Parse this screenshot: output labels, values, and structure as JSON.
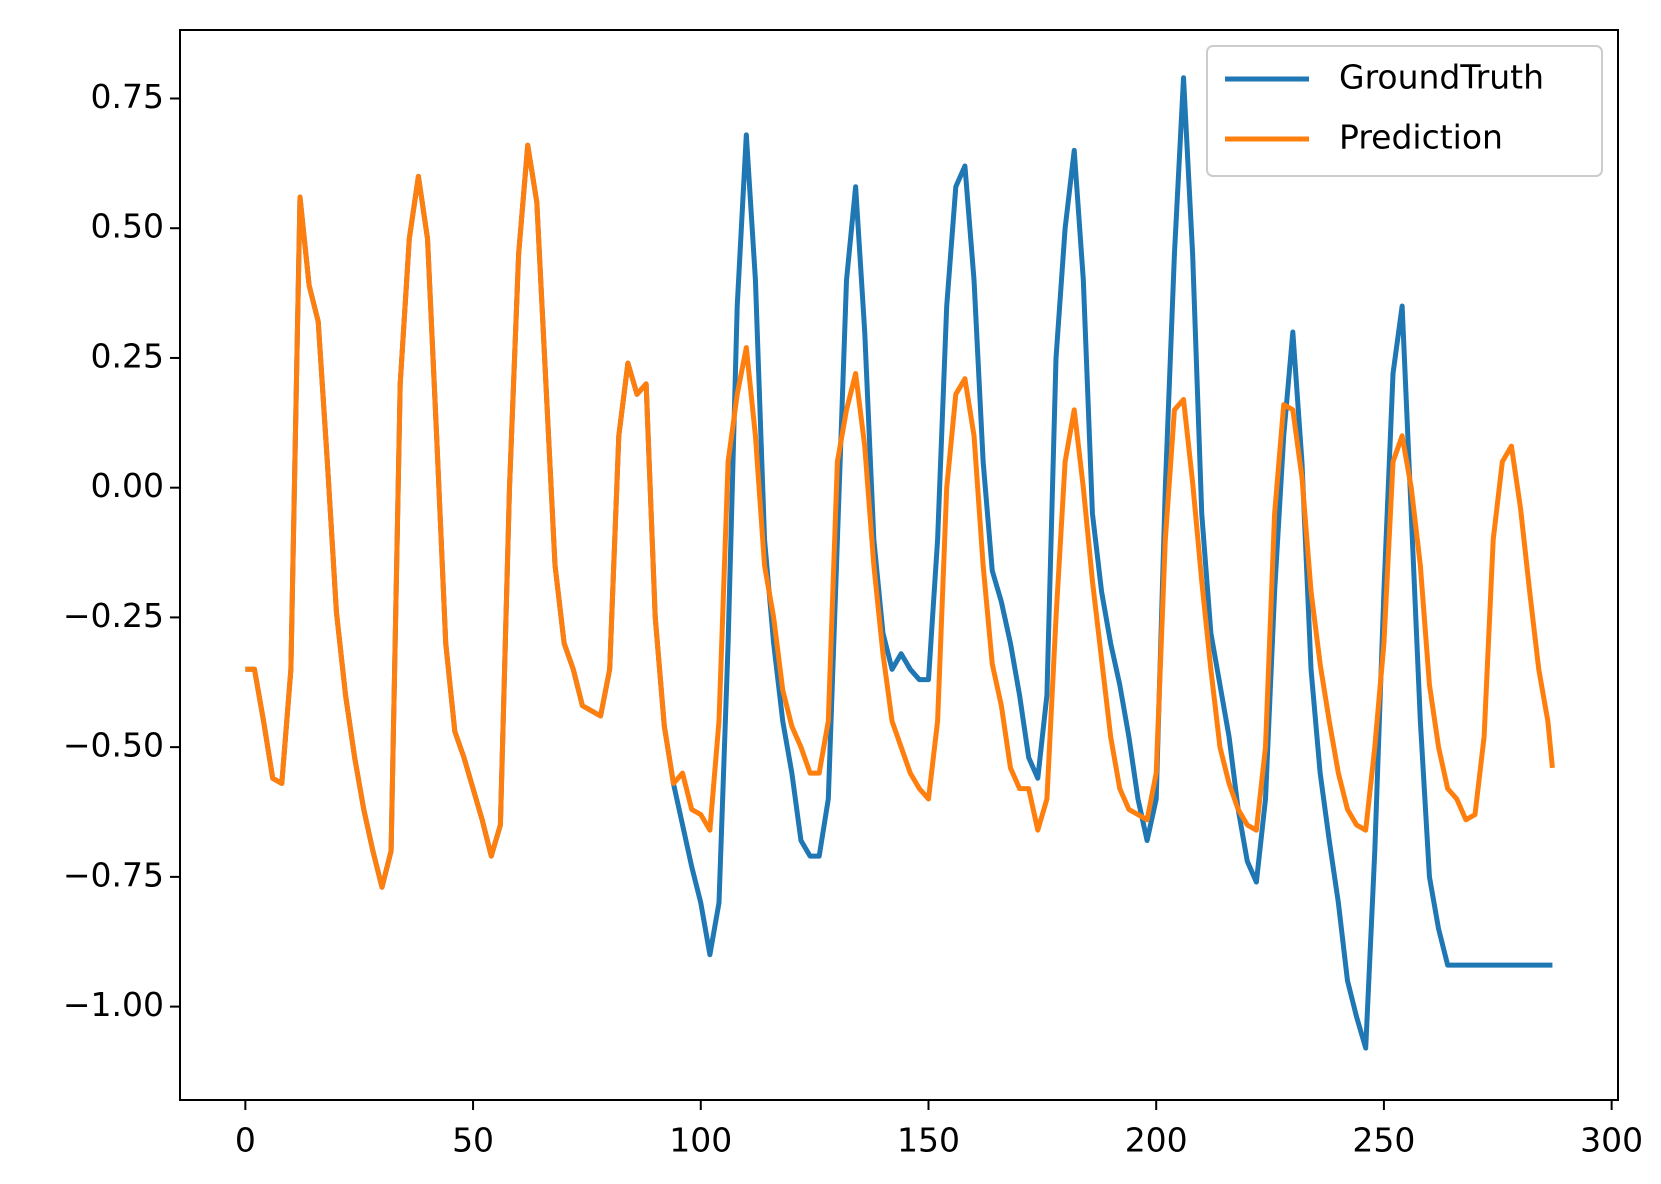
{
  "chart_data": {
    "type": "line",
    "x": [
      0,
      2,
      4,
      6,
      8,
      10,
      12,
      14,
      16,
      18,
      20,
      22,
      24,
      26,
      28,
      30,
      32,
      34,
      36,
      38,
      40,
      42,
      44,
      46,
      48,
      50,
      52,
      54,
      56,
      58,
      60,
      62,
      64,
      66,
      68,
      70,
      72,
      74,
      76,
      78,
      80,
      82,
      84,
      86,
      88,
      90,
      92,
      94,
      96,
      98,
      100,
      102,
      104,
      106,
      108,
      110,
      112,
      114,
      116,
      118,
      120,
      122,
      124,
      126,
      128,
      130,
      132,
      134,
      136,
      138,
      140,
      142,
      144,
      146,
      148,
      150,
      152,
      154,
      156,
      158,
      160,
      162,
      164,
      166,
      168,
      170,
      172,
      174,
      176,
      178,
      180,
      182,
      184,
      186,
      188,
      190,
      192,
      194,
      196,
      198,
      200,
      202,
      204,
      206,
      208,
      210,
      212,
      214,
      216,
      218,
      220,
      222,
      224,
      226,
      228,
      230,
      232,
      234,
      236,
      238,
      240,
      242,
      244,
      246,
      248,
      250,
      252,
      254,
      256,
      258,
      260,
      262,
      264,
      266,
      268,
      270,
      272,
      274,
      276,
      278,
      280,
      282,
      284,
      286,
      287
    ],
    "series": [
      {
        "name": "GroundTruth",
        "color": "#1f77b4",
        "values": [
          -0.35,
          -0.35,
          -0.45,
          -0.56,
          -0.57,
          -0.35,
          0.56,
          0.39,
          0.32,
          0.05,
          -0.24,
          -0.4,
          -0.52,
          -0.62,
          -0.7,
          -0.77,
          -0.7,
          0.2,
          0.48,
          0.6,
          0.48,
          0.1,
          -0.3,
          -0.47,
          -0.52,
          -0.58,
          -0.64,
          -0.71,
          -0.65,
          0,
          0.45,
          0.66,
          0.55,
          0.2,
          -0.15,
          -0.3,
          -0.35,
          -0.42,
          -0.43,
          -0.44,
          -0.35,
          0.1,
          0.24,
          0.18,
          0.2,
          -0.25,
          -0.46,
          -0.57,
          -0.65,
          -0.73,
          -0.8,
          -0.9,
          -0.8,
          -0.3,
          0.35,
          0.68,
          0.4,
          -0.1,
          -0.3,
          -0.45,
          -0.55,
          -0.68,
          -0.71,
          -0.71,
          -0.6,
          -0.1,
          0.4,
          0.58,
          0.3,
          -0.1,
          -0.28,
          -0.35,
          -0.32,
          -0.35,
          -0.37,
          -0.37,
          -0.1,
          0.35,
          0.58,
          0.62,
          0.4,
          0.05,
          -0.16,
          -0.22,
          -0.3,
          -0.4,
          -0.52,
          -0.56,
          -0.4,
          0.25,
          0.5,
          0.65,
          0.4,
          -0.05,
          -0.2,
          -0.3,
          -0.38,
          -0.48,
          -0.6,
          -0.68,
          -0.6,
          0,
          0.45,
          0.79,
          0.45,
          -0.05,
          -0.28,
          -0.38,
          -0.48,
          -0.62,
          -0.72,
          -0.76,
          -0.6,
          -0.2,
          0.1,
          0.3,
          0.05,
          -0.35,
          -0.55,
          -0.68,
          -0.8,
          -0.95,
          -1.02,
          -1.08,
          -0.7,
          -0.2,
          0.22,
          0.35,
          -0.05,
          -0.45,
          -0.75,
          -0.85,
          -0.92,
          -0.92,
          -0.92,
          -0.92,
          -0.92,
          -0.92,
          -0.92,
          -0.92,
          -0.92,
          -0.92,
          -0.92,
          -0.92,
          -0.92
        ]
      },
      {
        "name": "Prediction",
        "color": "#ff7f0e",
        "values": [
          -0.35,
          -0.35,
          -0.45,
          -0.56,
          -0.57,
          -0.35,
          0.56,
          0.39,
          0.32,
          0.05,
          -0.24,
          -0.4,
          -0.52,
          -0.62,
          -0.7,
          -0.77,
          -0.7,
          0.2,
          0.48,
          0.6,
          0.48,
          0.1,
          -0.3,
          -0.47,
          -0.52,
          -0.58,
          -0.64,
          -0.71,
          -0.65,
          0,
          0.45,
          0.66,
          0.55,
          0.2,
          -0.15,
          -0.3,
          -0.35,
          -0.42,
          -0.43,
          -0.44,
          -0.35,
          0.1,
          0.24,
          0.18,
          0.2,
          -0.25,
          -0.46,
          -0.57,
          -0.55,
          -0.62,
          -0.63,
          -0.66,
          -0.45,
          0.05,
          0.18,
          0.27,
          0.1,
          -0.15,
          -0.25,
          -0.39,
          -0.46,
          -0.5,
          -0.55,
          -0.55,
          -0.45,
          0.05,
          0.15,
          0.22,
          0.08,
          -0.15,
          -0.32,
          -0.45,
          -0.5,
          -0.55,
          -0.58,
          -0.6,
          -0.45,
          0,
          0.18,
          0.21,
          0.1,
          -0.15,
          -0.34,
          -0.42,
          -0.54,
          -0.58,
          -0.58,
          -0.66,
          -0.6,
          -0.25,
          0.05,
          0.15,
          0,
          -0.18,
          -0.33,
          -0.48,
          -0.58,
          -0.62,
          -0.63,
          -0.64,
          -0.55,
          -0.1,
          0.15,
          0.17,
          0.01,
          -0.18,
          -0.35,
          -0.5,
          -0.57,
          -0.62,
          -0.65,
          -0.66,
          -0.5,
          -0.05,
          0.16,
          0.15,
          0.02,
          -0.2,
          -0.34,
          -0.45,
          -0.55,
          -0.62,
          -0.65,
          -0.66,
          -0.5,
          -0.3,
          0.05,
          0.1,
          0,
          -0.15,
          -0.38,
          -0.5,
          -0.58,
          -0.6,
          -0.64,
          -0.63,
          -0.48,
          -0.1,
          0.05,
          0.08,
          -0.04,
          -0.2,
          -0.35,
          -0.45,
          -0.54
        ]
      }
    ],
    "xlim": [
      -14.35,
      301.4
    ],
    "ylim": [
      -1.18,
      0.882
    ],
    "xticks": [
      0,
      50,
      100,
      150,
      200,
      250,
      300
    ],
    "yticks": [
      {
        "value": -1,
        "label": "−1.00"
      },
      {
        "value": -0.75,
        "label": "−0.75"
      },
      {
        "value": -0.5,
        "label": "−0.50"
      },
      {
        "value": -0.25,
        "label": "−0.25"
      },
      {
        "value": 0,
        "label": "0.00"
      },
      {
        "value": 0.25,
        "label": "0.25"
      },
      {
        "value": 0.5,
        "label": "0.50"
      },
      {
        "value": 0.75,
        "label": "0.75"
      }
    ],
    "legend": "upper right"
  }
}
